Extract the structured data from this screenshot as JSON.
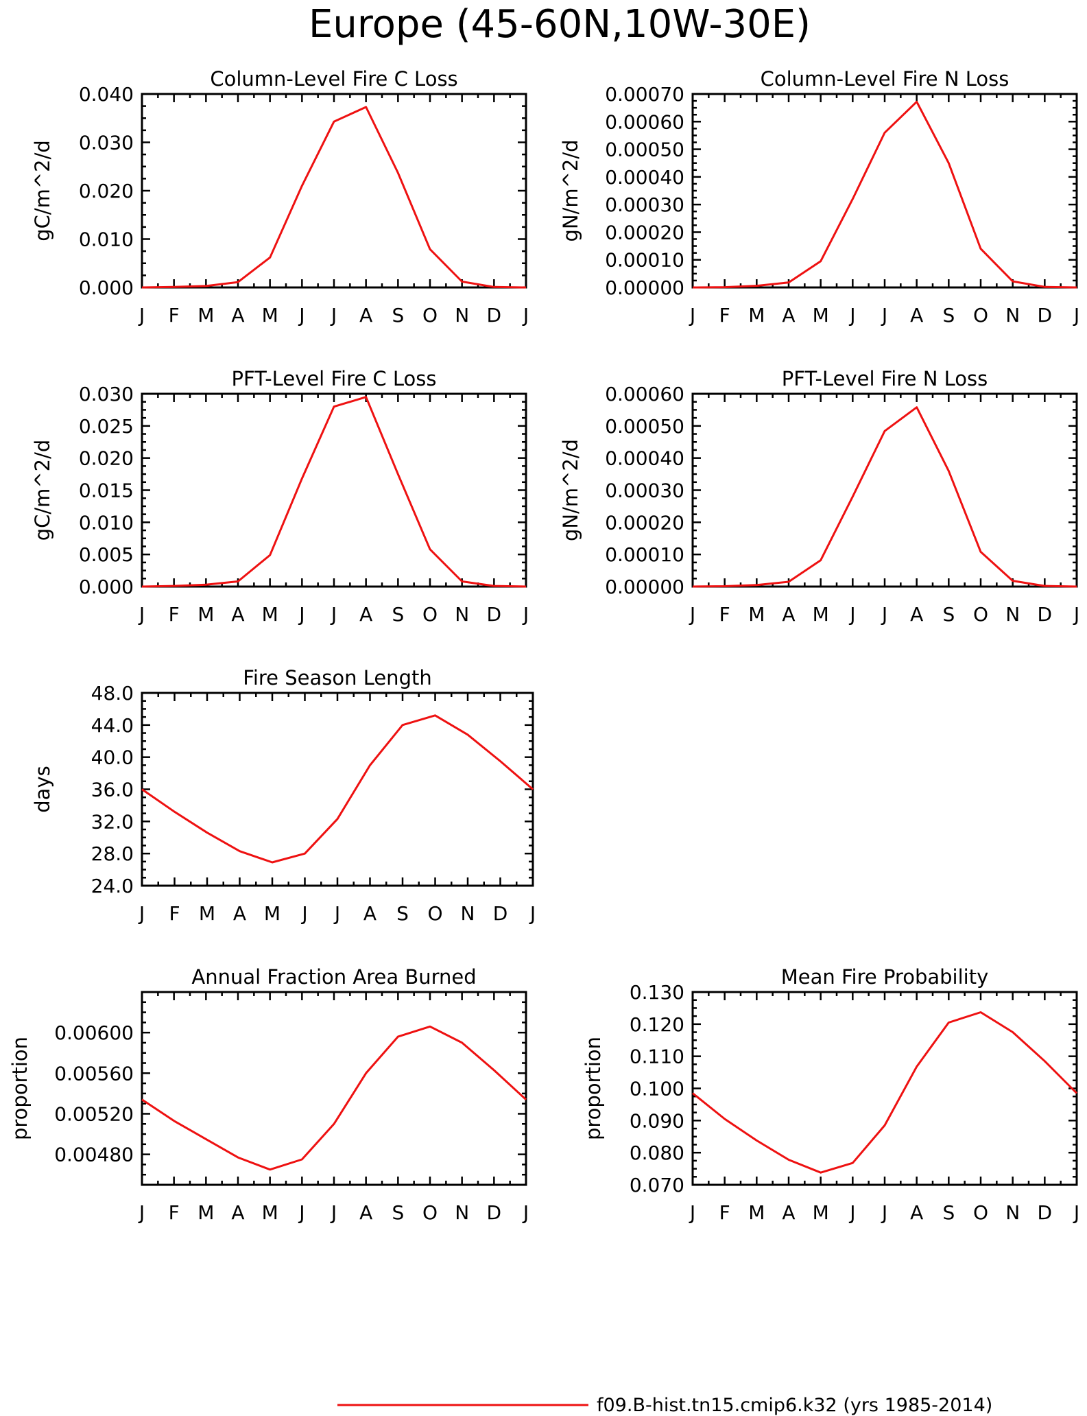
{
  "figure": {
    "title": "Europe (45-60N,10W-30E)",
    "line_color": "#ee1111",
    "legend": {
      "label": "f09.B-hist.tn15.cmip6.k32 (yrs 1985-2014)"
    }
  },
  "chart_data": [
    {
      "type": "line",
      "title": "Column-Level Fire C Loss",
      "xlabel": "",
      "ylabel": "gC/m^2/d",
      "categories": [
        "J",
        "F",
        "M",
        "A",
        "M",
        "J",
        "J",
        "A",
        "S",
        "O",
        "N",
        "D",
        "J"
      ],
      "ylim": [
        0,
        0.04
      ],
      "yticks": [
        "0.000",
        "0.010",
        "0.020",
        "0.030",
        "0.040"
      ],
      "series": [
        {
          "values": [
            0.0,
            0.0001,
            0.0003,
            0.0011,
            0.0062,
            0.021,
            0.0343,
            0.0373,
            0.0237,
            0.0079,
            0.0012,
            0.0001,
            0.0
          ]
        }
      ],
      "grid": false
    },
    {
      "type": "line",
      "title": "Column-Level Fire N Loss",
      "xlabel": "",
      "ylabel": "gN/m^2/d",
      "categories": [
        "J",
        "F",
        "M",
        "A",
        "M",
        "J",
        "J",
        "A",
        "S",
        "O",
        "N",
        "D",
        "J"
      ],
      "ylim": [
        0,
        0.0007
      ],
      "yticks": [
        "0.00000",
        "0.00010",
        "0.00020",
        "0.00030",
        "0.00040",
        "0.00050",
        "0.00060",
        "0.00070"
      ],
      "series": [
        {
          "values": [
            0.0,
            1e-06,
            6e-06,
            1.8e-05,
            9.5e-05,
            0.00032,
            0.00056,
            0.000672,
            0.00045,
            0.00014,
            2.2e-05,
            2e-06,
            0.0
          ]
        }
      ],
      "grid": false
    },
    {
      "type": "line",
      "title": "PFT-Level Fire C Loss",
      "xlabel": "",
      "ylabel": "gC/m^2/d",
      "categories": [
        "J",
        "F",
        "M",
        "A",
        "M",
        "J",
        "J",
        "A",
        "S",
        "O",
        "N",
        "D",
        "J"
      ],
      "ylim": [
        0,
        0.03
      ],
      "yticks": [
        "0.000",
        "0.005",
        "0.010",
        "0.015",
        "0.020",
        "0.025",
        "0.030"
      ],
      "series": [
        {
          "values": [
            0.0,
            0.0001,
            0.0003,
            0.0008,
            0.0049,
            0.0168,
            0.028,
            0.0295,
            0.0175,
            0.0058,
            0.0008,
            0.0001,
            0.0
          ]
        }
      ],
      "grid": false
    },
    {
      "type": "line",
      "title": "PFT-Level Fire N Loss",
      "xlabel": "",
      "ylabel": "gN/m^2/d",
      "categories": [
        "J",
        "F",
        "M",
        "A",
        "M",
        "J",
        "J",
        "A",
        "S",
        "O",
        "N",
        "D",
        "J"
      ],
      "ylim": [
        0,
        0.0006
      ],
      "yticks": [
        "0.00000",
        "0.00010",
        "0.00020",
        "0.00030",
        "0.00040",
        "0.00050",
        "0.00060"
      ],
      "series": [
        {
          "values": [
            0.0,
            1e-06,
            5e-06,
            1.5e-05,
            8.2e-05,
            0.00028,
            0.000484,
            0.000558,
            0.00036,
            0.000108,
            1.8e-05,
            2e-06,
            0.0
          ]
        }
      ],
      "grid": false
    },
    {
      "type": "line",
      "title": "Fire Season Length",
      "xlabel": "",
      "ylabel": "days",
      "categories": [
        "J",
        "F",
        "M",
        "A",
        "M",
        "J",
        "J",
        "A",
        "S",
        "O",
        "N",
        "D",
        "J"
      ],
      "ylim": [
        24,
        48
      ],
      "yticks": [
        "24.0",
        "28.0",
        "32.0",
        "36.0",
        "40.0",
        "44.0",
        "48.0"
      ],
      "series": [
        {
          "values": [
            36.0,
            33.2,
            30.6,
            28.3,
            26.9,
            28.0,
            32.3,
            39.0,
            44.0,
            45.2,
            42.8,
            39.5,
            36.0
          ]
        }
      ],
      "grid": false
    },
    {
      "type": "line",
      "title": "Annual Fraction Area Burned",
      "xlabel": "",
      "ylabel": "proportion",
      "categories": [
        "J",
        "F",
        "M",
        "A",
        "M",
        "J",
        "J",
        "A",
        "S",
        "O",
        "N",
        "D",
        "J"
      ],
      "ylim": [
        0.0045,
        0.0064
      ],
      "yticks": [
        "0.00480",
        "0.00520",
        "0.00560",
        "0.00600"
      ],
      "series": [
        {
          "values": [
            0.00534,
            0.00513,
            0.00495,
            0.00477,
            0.00465,
            0.00475,
            0.0051,
            0.0056,
            0.00596,
            0.00606,
            0.0059,
            0.00563,
            0.00534
          ]
        }
      ],
      "grid": false
    },
    {
      "type": "line",
      "title": "Mean Fire Probability",
      "xlabel": "",
      "ylabel": "proportion",
      "categories": [
        "J",
        "F",
        "M",
        "A",
        "M",
        "J",
        "J",
        "A",
        "S",
        "O",
        "N",
        "D",
        "J"
      ],
      "ylim": [
        0.07,
        0.13
      ],
      "yticks": [
        "0.070",
        "0.080",
        "0.090",
        "0.100",
        "0.110",
        "0.120",
        "0.130"
      ],
      "series": [
        {
          "values": [
            0.0985,
            0.0905,
            0.0838,
            0.0778,
            0.0738,
            0.0768,
            0.0885,
            0.1068,
            0.1205,
            0.1237,
            0.1175,
            0.1085,
            0.0985
          ]
        }
      ],
      "grid": false
    }
  ]
}
